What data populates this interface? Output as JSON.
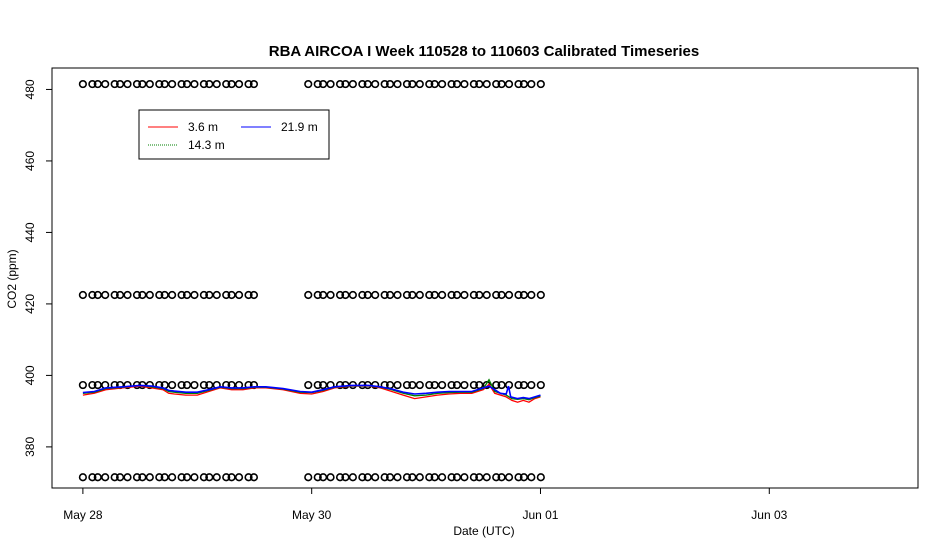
{
  "chart_data": {
    "type": "line",
    "title": "RBA AIRCOA I  Week 110528 to 110603  Calibrated Timeseries",
    "xlabel": "Date (UTC)",
    "ylabel": "CO2 (ppm)",
    "x_ticks": [
      {
        "label": "May 28",
        "day": 0
      },
      {
        "label": "May 30",
        "day": 2
      },
      {
        "label": "Jun 01",
        "day": 4
      },
      {
        "label": "Jun 03",
        "day": 6
      }
    ],
    "y_ticks": [
      380,
      400,
      420,
      440,
      460,
      480
    ],
    "xlim_days": [
      -0.27,
      7.3
    ],
    "ylim": [
      368.5,
      486
    ],
    "grid": false,
    "legend_position": "top-left",
    "series": [
      {
        "name": "3.6 m",
        "color": "#ff0000",
        "points": [
          [
            0,
            394.5
          ],
          [
            0.1,
            395
          ],
          [
            0.2,
            396
          ],
          [
            0.35,
            396.5
          ],
          [
            0.5,
            397
          ],
          [
            0.6,
            396.5
          ],
          [
            0.7,
            396
          ],
          [
            0.75,
            395
          ],
          [
            0.8,
            394.8
          ],
          [
            0.9,
            394.5
          ],
          [
            1.0,
            394.5
          ],
          [
            1.1,
            395.5
          ],
          [
            1.2,
            396.5
          ],
          [
            1.3,
            396
          ],
          [
            1.4,
            396
          ],
          [
            1.5,
            396.5
          ],
          [
            1.6,
            396.5
          ],
          [
            1.75,
            396
          ],
          [
            1.9,
            395
          ],
          [
            2.0,
            394.8
          ],
          [
            2.1,
            395.5
          ],
          [
            2.2,
            396.5
          ],
          [
            2.35,
            397
          ],
          [
            2.5,
            397
          ],
          [
            2.6,
            396.5
          ],
          [
            2.7,
            395.5
          ],
          [
            2.8,
            394.5
          ],
          [
            2.9,
            393.5
          ],
          [
            3.0,
            394
          ],
          [
            3.1,
            394.5
          ],
          [
            3.2,
            394.8
          ],
          [
            3.3,
            395
          ],
          [
            3.4,
            395
          ],
          [
            3.5,
            396
          ],
          [
            3.55,
            397.5
          ],
          [
            3.6,
            395
          ],
          [
            3.7,
            394
          ],
          [
            3.75,
            393
          ],
          [
            3.8,
            392.5
          ],
          [
            3.85,
            393
          ],
          [
            3.9,
            392.5
          ],
          [
            3.95,
            393.5
          ],
          [
            4.0,
            394
          ]
        ]
      },
      {
        "name": "14.3 m",
        "color": "#008000",
        "points": [
          [
            0,
            395
          ],
          [
            0.1,
            395.3
          ],
          [
            0.2,
            396.3
          ],
          [
            0.35,
            396.7
          ],
          [
            0.5,
            397.2
          ],
          [
            0.6,
            396.8
          ],
          [
            0.7,
            396.3
          ],
          [
            0.75,
            395.5
          ],
          [
            0.8,
            395.3
          ],
          [
            0.9,
            395
          ],
          [
            1.0,
            395
          ],
          [
            1.1,
            395.8
          ],
          [
            1.2,
            396.7
          ],
          [
            1.3,
            396.3
          ],
          [
            1.4,
            396.3
          ],
          [
            1.5,
            396.7
          ],
          [
            1.6,
            396.7
          ],
          [
            1.75,
            396.2
          ],
          [
            1.9,
            395.3
          ],
          [
            2.0,
            395.2
          ],
          [
            2.1,
            395.8
          ],
          [
            2.2,
            396.7
          ],
          [
            2.35,
            397.1
          ],
          [
            2.5,
            397.1
          ],
          [
            2.6,
            396.7
          ],
          [
            2.7,
            396
          ],
          [
            2.8,
            395
          ],
          [
            2.9,
            394.3
          ],
          [
            3.0,
            394.5
          ],
          [
            3.1,
            395
          ],
          [
            3.2,
            395.2
          ],
          [
            3.3,
            395.3
          ],
          [
            3.4,
            395.3
          ],
          [
            3.5,
            396.3
          ],
          [
            3.55,
            398.8
          ],
          [
            3.6,
            395.5
          ],
          [
            3.7,
            394.5
          ],
          [
            3.75,
            393.5
          ],
          [
            3.8,
            393.3
          ],
          [
            3.85,
            393.5
          ],
          [
            3.9,
            393.2
          ],
          [
            3.95,
            393.8
          ],
          [
            4.0,
            394.2
          ]
        ]
      },
      {
        "name": "21.9 m",
        "color": "#0000ff",
        "points": [
          [
            0,
            395.2
          ],
          [
            0.1,
            395.5
          ],
          [
            0.2,
            396.5
          ],
          [
            0.35,
            396.8
          ],
          [
            0.5,
            397.2
          ],
          [
            0.6,
            397
          ],
          [
            0.7,
            396.5
          ],
          [
            0.75,
            395.8
          ],
          [
            0.8,
            395.6
          ],
          [
            0.9,
            395.3
          ],
          [
            1.0,
            395.3
          ],
          [
            1.1,
            396
          ],
          [
            1.2,
            396.8
          ],
          [
            1.3,
            396.5
          ],
          [
            1.4,
            396.5
          ],
          [
            1.5,
            396.8
          ],
          [
            1.6,
            396.8
          ],
          [
            1.75,
            396.3
          ],
          [
            1.9,
            395.5
          ],
          [
            2.0,
            395.3
          ],
          [
            2.1,
            396
          ],
          [
            2.2,
            396.8
          ],
          [
            2.35,
            397.2
          ],
          [
            2.5,
            397.2
          ],
          [
            2.6,
            396.8
          ],
          [
            2.7,
            396.2
          ],
          [
            2.8,
            395.3
          ],
          [
            2.9,
            394.8
          ],
          [
            3.0,
            395
          ],
          [
            3.1,
            395.3
          ],
          [
            3.2,
            395.5
          ],
          [
            3.3,
            395.5
          ],
          [
            3.4,
            395.5
          ],
          [
            3.5,
            396.5
          ],
          [
            3.55,
            397
          ],
          [
            3.6,
            396
          ],
          [
            3.65,
            395
          ],
          [
            3.7,
            394.8
          ],
          [
            3.72,
            397
          ],
          [
            3.74,
            394
          ],
          [
            3.8,
            393.5
          ],
          [
            3.85,
            393.8
          ],
          [
            3.9,
            393.5
          ],
          [
            3.95,
            394
          ],
          [
            4.0,
            394.5
          ]
        ]
      }
    ],
    "status_markers": {
      "symbol": "o",
      "rows": [
        481.5,
        422.5,
        397.3,
        371.5
      ],
      "time_ranges": [
        [
          0,
          1.52
        ],
        [
          1.97,
          4.0
        ]
      ]
    }
  }
}
